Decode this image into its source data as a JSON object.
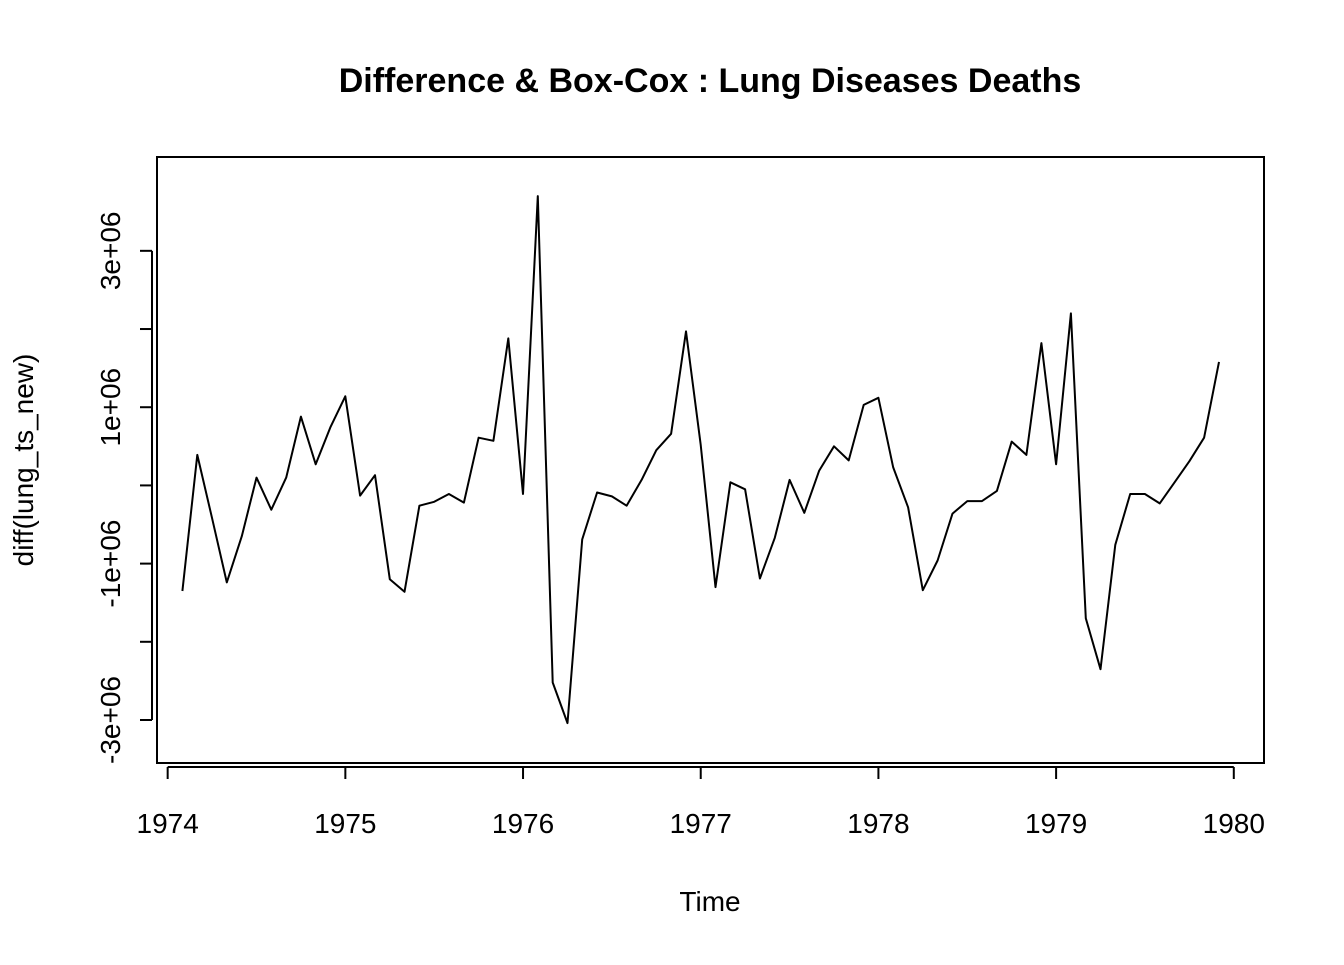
{
  "chart_data": {
    "type": "line",
    "title": "Difference & Box-Cox : Lung Diseases Deaths",
    "xlabel": "Time",
    "ylabel": "diff(lung_ts_new)",
    "xlim": [
      1973.94,
      1980.17
    ],
    "ylim": [
      -3550000.0,
      4200000.0
    ],
    "x_ticks": [
      1974,
      1975,
      1976,
      1977,
      1978,
      1979,
      1980
    ],
    "x_tick_labels": [
      "1974",
      "1975",
      "1976",
      "1977",
      "1978",
      "1979",
      "1980"
    ],
    "y_ticks": [
      -3000000,
      -2000000,
      -1000000,
      0,
      1000000,
      2000000,
      3000000
    ],
    "y_tick_labels": [
      "-3e+06",
      "",
      "-1e+06",
      "",
      "1e+06",
      "",
      "3e+06"
    ],
    "grid": false,
    "series": [
      {
        "color": "#000000",
        "x": [
          1974.083,
          1974.167,
          1974.25,
          1974.333,
          1974.417,
          1974.5,
          1974.583,
          1974.667,
          1974.75,
          1974.833,
          1974.917,
          1975.0,
          1975.083,
          1975.167,
          1975.25,
          1975.333,
          1975.417,
          1975.5,
          1975.583,
          1975.667,
          1975.75,
          1975.833,
          1975.917,
          1976.0,
          1976.083,
          1976.167,
          1976.25,
          1976.333,
          1976.417,
          1976.5,
          1976.583,
          1976.667,
          1976.75,
          1976.833,
          1976.917,
          1977.0,
          1977.083,
          1977.167,
          1977.25,
          1977.333,
          1977.417,
          1977.5,
          1977.583,
          1977.667,
          1977.75,
          1977.833,
          1977.917,
          1978.0,
          1978.083,
          1978.167,
          1978.25,
          1978.333,
          1978.417,
          1978.5,
          1978.583,
          1978.667,
          1978.75,
          1978.833,
          1978.917,
          1979.0,
          1979.083,
          1979.167,
          1979.25,
          1979.333,
          1979.417,
          1979.5,
          1979.583,
          1979.667,
          1979.75,
          1979.833,
          1979.917
        ],
        "y": [
          -1350000,
          390000,
          -420000,
          -1240000,
          -650000,
          100000,
          -310000,
          100000,
          880000,
          270000,
          750000,
          1140000,
          -130000,
          130000,
          -1200000,
          -1360000,
          -260000,
          -210000,
          -110000,
          -220000,
          610000,
          570000,
          1880000,
          -110000,
          3700000,
          -2520000,
          -3040000,
          -690000,
          -90000,
          -140000,
          -260000,
          70000,
          450000,
          660000,
          1970000,
          520000,
          -1300000,
          40000,
          -50000,
          -1190000,
          -670000,
          70000,
          -350000,
          190000,
          500000,
          320000,
          1030000,
          1120000,
          230000,
          -280000,
          -1340000,
          -960000,
          -360000,
          -200000,
          -200000,
          -70000,
          560000,
          390000,
          1820000,
          270000,
          2200000,
          -1700000,
          -2350000,
          -760000,
          -110000,
          -110000,
          -230000,
          40000,
          310000,
          610000,
          1580000
        ]
      }
    ]
  }
}
